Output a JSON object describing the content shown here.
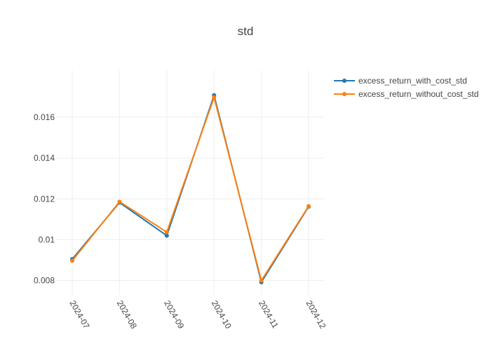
{
  "chart_data": {
    "type": "line",
    "title": "std",
    "xlabel": "",
    "ylabel": "",
    "categories": [
      "2024-07",
      "2024-08",
      "2024-09",
      "2024-10",
      "2024-11",
      "2024-12"
    ],
    "ylim": [
      0.0073,
      0.0183
    ],
    "yticks": [
      0.008,
      0.01,
      0.012,
      0.014,
      0.016
    ],
    "ytick_labels": [
      "0.008",
      "0.01",
      "0.012",
      "0.014",
      "0.016"
    ],
    "grid": true,
    "legend_position": "top-right",
    "series": [
      {
        "name": "excess_return_with_cost_std",
        "color": "#1f77b4",
        "values": [
          0.00905,
          0.01182,
          0.0102,
          0.01707,
          0.00792,
          0.01162
        ]
      },
      {
        "name": "excess_return_without_cost_std",
        "color": "#ff7f0e",
        "values": [
          0.00897,
          0.01186,
          0.01037,
          0.01697,
          0.008,
          0.01164
        ]
      }
    ]
  }
}
